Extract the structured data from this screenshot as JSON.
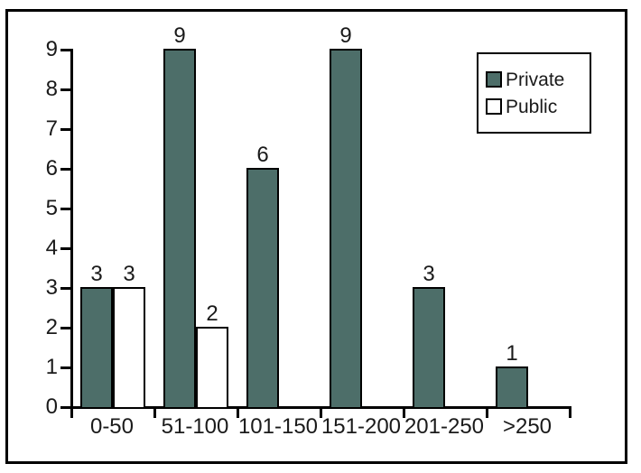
{
  "chart_data": {
    "type": "bar",
    "categories": [
      "0-50",
      "51-100",
      "101-150",
      "151-200",
      "201-250",
      ">250"
    ],
    "series": [
      {
        "name": "Private",
        "values": [
          3,
          9,
          6,
          9,
          3,
          1
        ],
        "fill": "#4d6e69"
      },
      {
        "name": "Public",
        "values": [
          3,
          2,
          0,
          0,
          0,
          0
        ],
        "fill": "#ffffff"
      }
    ],
    "value_labels": {
      "Private": [
        "3",
        "9",
        "6",
        "9",
        "3",
        "1"
      ],
      "Public": [
        "3",
        "2",
        "",
        "",
        "",
        ""
      ]
    },
    "title": "",
    "xlabel": "",
    "ylabel": "",
    "y_ticks": [
      "0",
      "1",
      "2",
      "3",
      "4",
      "5",
      "6",
      "7",
      "8",
      "9"
    ],
    "ylim": [
      0,
      9
    ],
    "grid": false,
    "legend_position": "top-right",
    "hide_zero_bars": true
  },
  "colors": {
    "bar_private": "#4d6e69",
    "bar_public": "#ffffff",
    "axis": "#000000",
    "frame_border": "#000000",
    "text": "#1a1a1a",
    "background": "#ffffff"
  }
}
